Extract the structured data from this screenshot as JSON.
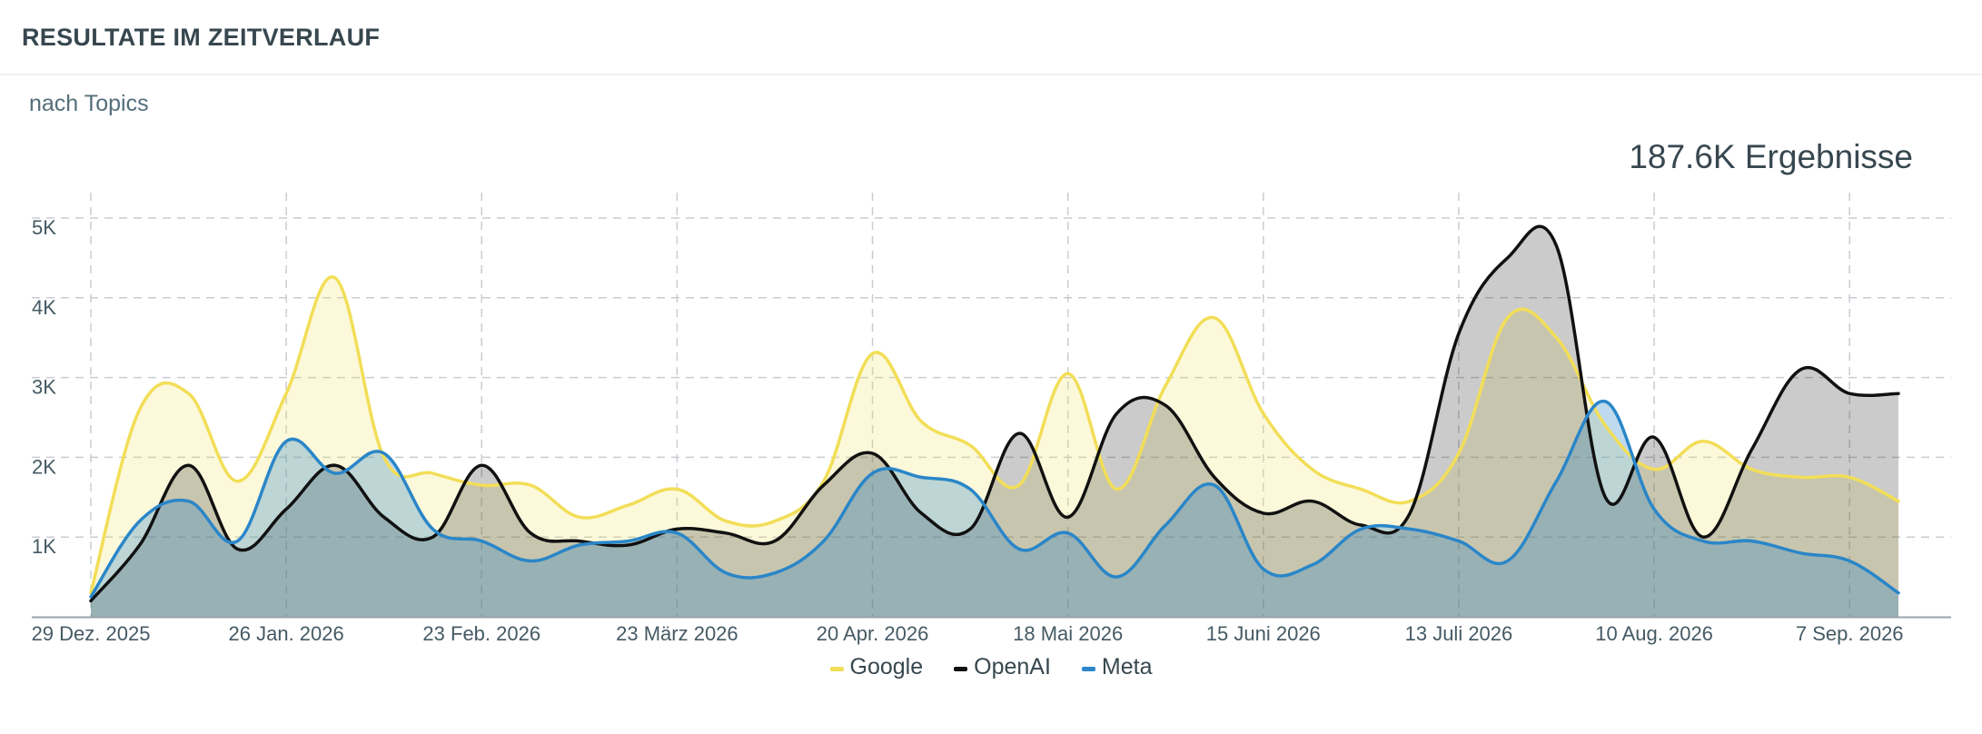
{
  "header": {
    "title": "RESULTATE IM ZEITVERLAUF"
  },
  "subtitle": "nach Topics",
  "total_label": "187.6K Ergebnisse",
  "chart_data": {
    "type": "area",
    "x": [
      "2025-12-29",
      "2026-01-05",
      "2026-01-12",
      "2026-01-19",
      "2026-01-26",
      "2026-02-02",
      "2026-02-09",
      "2026-02-16",
      "2026-02-23",
      "2026-03-02",
      "2026-03-09",
      "2026-03-16",
      "2026-03-23",
      "2026-03-30",
      "2026-04-06",
      "2026-04-13",
      "2026-04-20",
      "2026-04-27",
      "2026-05-04",
      "2026-05-11",
      "2026-05-18",
      "2026-05-25",
      "2026-06-01",
      "2026-06-08",
      "2026-06-15",
      "2026-06-22",
      "2026-06-29",
      "2026-07-06",
      "2026-07-13",
      "2026-07-20",
      "2026-07-27",
      "2026-08-03",
      "2026-08-10",
      "2026-08-17",
      "2026-08-24",
      "2026-08-31",
      "2026-09-07",
      "2026-09-14"
    ],
    "x_ticks": [
      "29 Dez. 2025",
      "26 Jan. 2026",
      "23 Feb. 2026",
      "23 März 2026",
      "20 Apr. 2026",
      "18 Mai 2026",
      "15 Juni 2026",
      "13 Juli 2026",
      "10 Aug. 2026",
      "7 Sep. 2026"
    ],
    "y_ticks": [
      "1K",
      "2K",
      "3K",
      "4K",
      "5K"
    ],
    "ylim": [
      0,
      5000
    ],
    "grid": true,
    "legend_position": "bottom-center",
    "series": [
      {
        "name": "Google",
        "color": "#f2de57",
        "values": [
          300,
          2600,
          2800,
          1700,
          2800,
          4250,
          2000,
          1800,
          1650,
          1650,
          1250,
          1400,
          1600,
          1200,
          1200,
          1700,
          3300,
          2450,
          2150,
          1650,
          3050,
          1600,
          2900,
          3750,
          2550,
          1850,
          1600,
          1450,
          2050,
          3750,
          3500,
          2400,
          1850,
          2200,
          1850,
          1750,
          1750,
          1450
        ]
      },
      {
        "name": "OpenAI",
        "color": "#111111",
        "values": [
          200,
          900,
          1900,
          850,
          1350,
          1900,
          1250,
          1000,
          1900,
          1050,
          950,
          900,
          1100,
          1050,
          950,
          1650,
          2050,
          1300,
          1100,
          2300,
          1250,
          2550,
          2650,
          1750,
          1300,
          1450,
          1150,
          1300,
          3550,
          4500,
          4650,
          1500,
          2250,
          1000,
          2100,
          3100,
          2800,
          2800
        ]
      },
      {
        "name": "Meta",
        "color": "#2a86c8",
        "values": [
          250,
          1200,
          1450,
          950,
          2200,
          1800,
          2050,
          1100,
          950,
          700,
          900,
          950,
          1050,
          550,
          550,
          950,
          1800,
          1750,
          1600,
          850,
          1050,
          500,
          1150,
          1650,
          600,
          650,
          1100,
          1100,
          950,
          700,
          1700,
          2700,
          1350,
          950,
          950,
          800,
          700,
          300
        ]
      }
    ]
  }
}
